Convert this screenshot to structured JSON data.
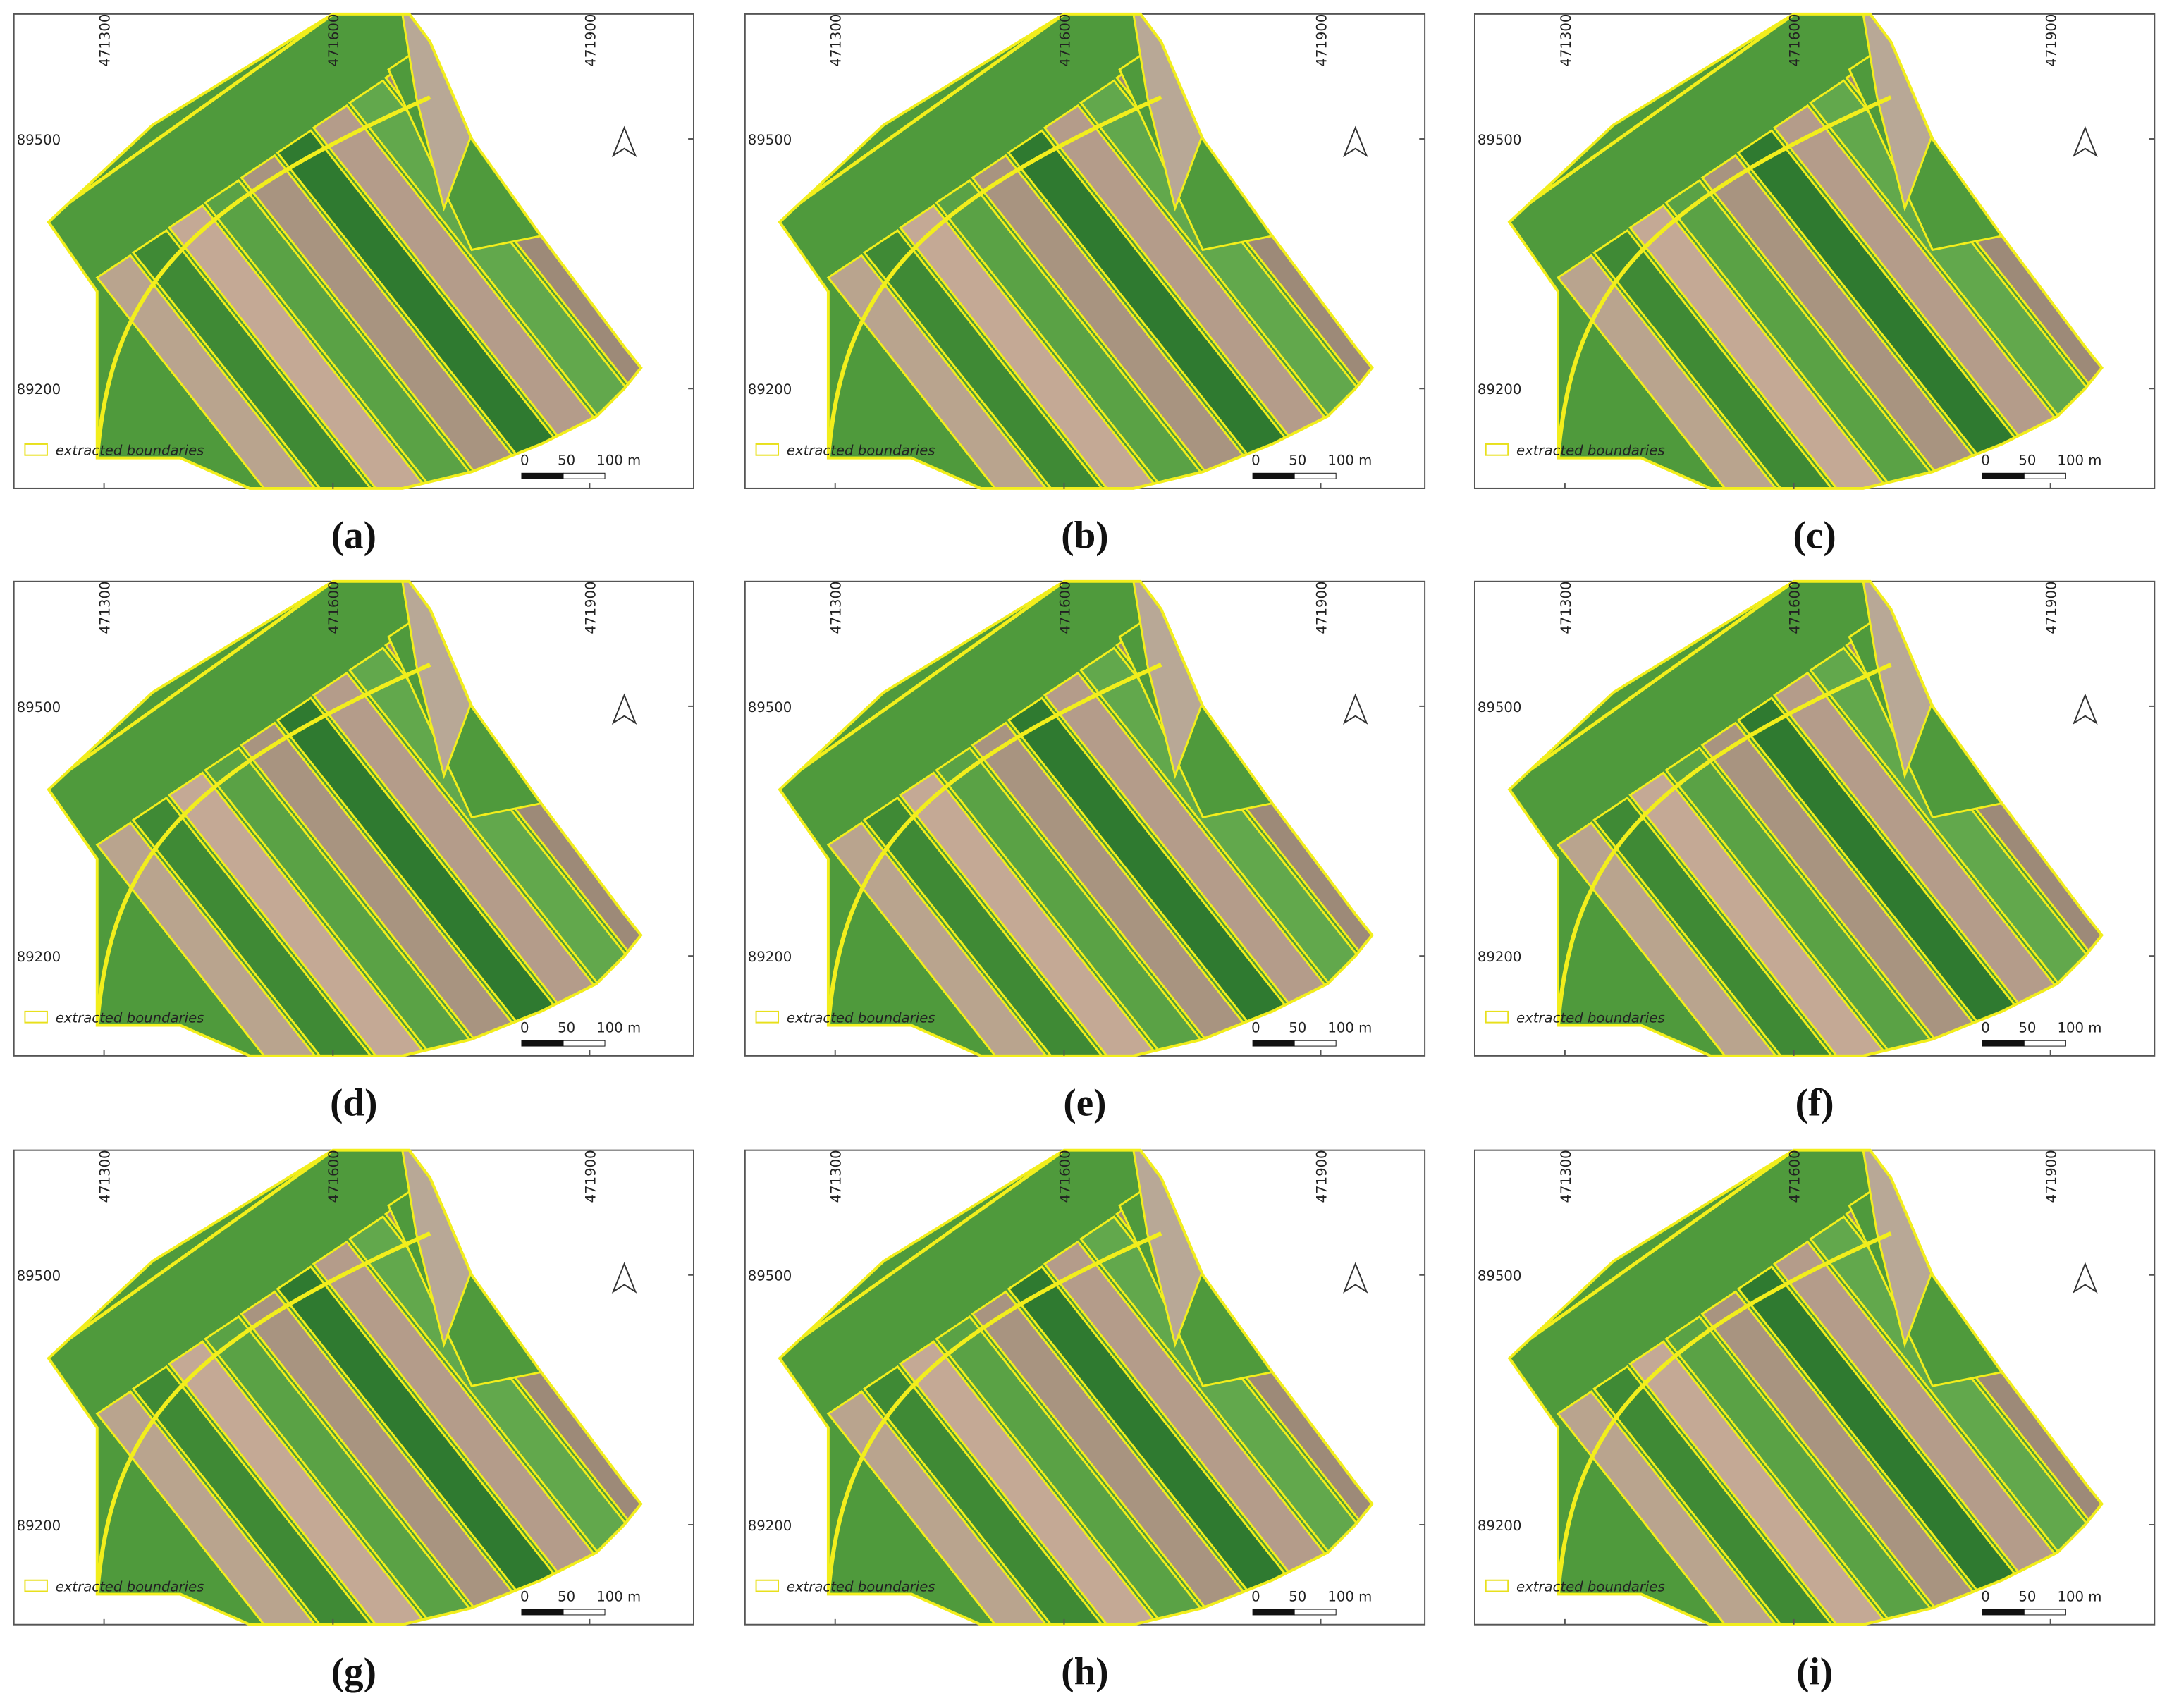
{
  "map": {
    "x_labels": [
      "471300",
      "471600",
      "471900"
    ],
    "y_labels": [
      "89500",
      "89200"
    ],
    "legend": "extracted boundaries",
    "scale_labels": [
      "0",
      "50",
      "100 m"
    ]
  },
  "panels": [
    {
      "label": "(a)"
    },
    {
      "label": "(b)"
    },
    {
      "label": "(c)"
    },
    {
      "label": "(d)"
    },
    {
      "label": "(e)"
    },
    {
      "label": "(f)"
    },
    {
      "label": "(g)"
    },
    {
      "label": "(h)"
    },
    {
      "label": "(i)"
    }
  ]
}
